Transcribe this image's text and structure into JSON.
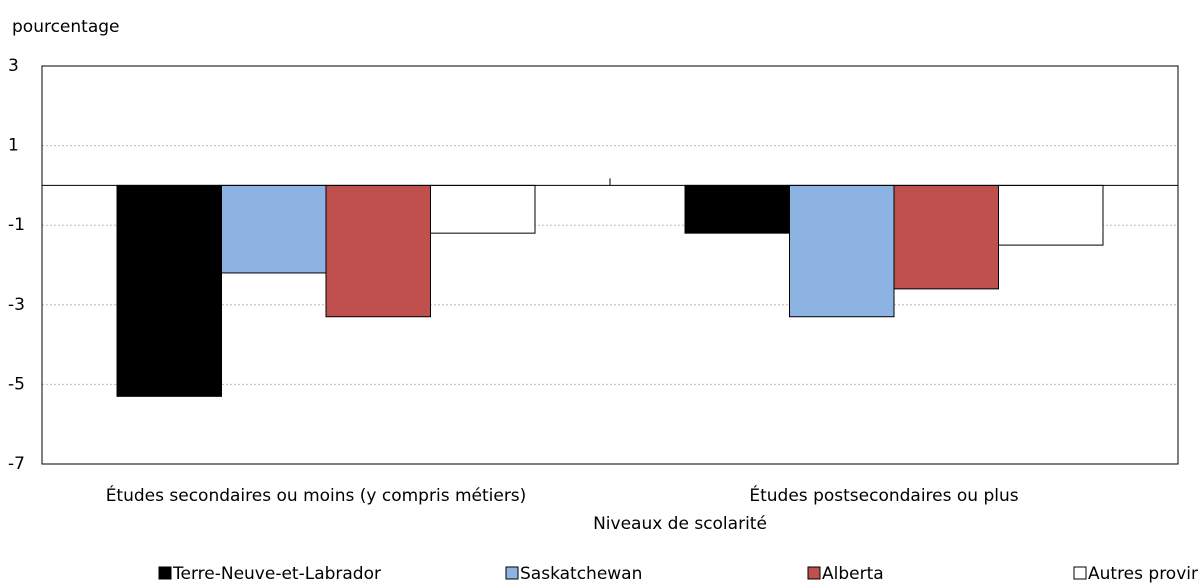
{
  "chart_data": {
    "type": "bar",
    "y_label": "pourcentage",
    "x_label": "Niveaux de scolarité",
    "categories": [
      "Études secondaires ou moins (y compris métiers)",
      "Études postsecondaires ou plus"
    ],
    "series": [
      {
        "name": "Terre-Neuve-et-Labrador",
        "color": "#000000",
        "values": [
          -5.3,
          -1.2
        ]
      },
      {
        "name": "Saskatchewan",
        "color": "#8db3e2",
        "values": [
          -2.2,
          -3.3
        ]
      },
      {
        "name": "Alberta",
        "color": "#c0504d",
        "values": [
          -3.3,
          -2.6
        ]
      },
      {
        "name": "Autres provinces",
        "color": "#ffffff",
        "values": [
          -1.2,
          -1.5
        ]
      }
    ],
    "ylim": [
      -7,
      3
    ],
    "yticks": [
      -7,
      -5,
      -3,
      -1,
      1,
      3
    ],
    "grid": true,
    "legend": "bottom"
  }
}
